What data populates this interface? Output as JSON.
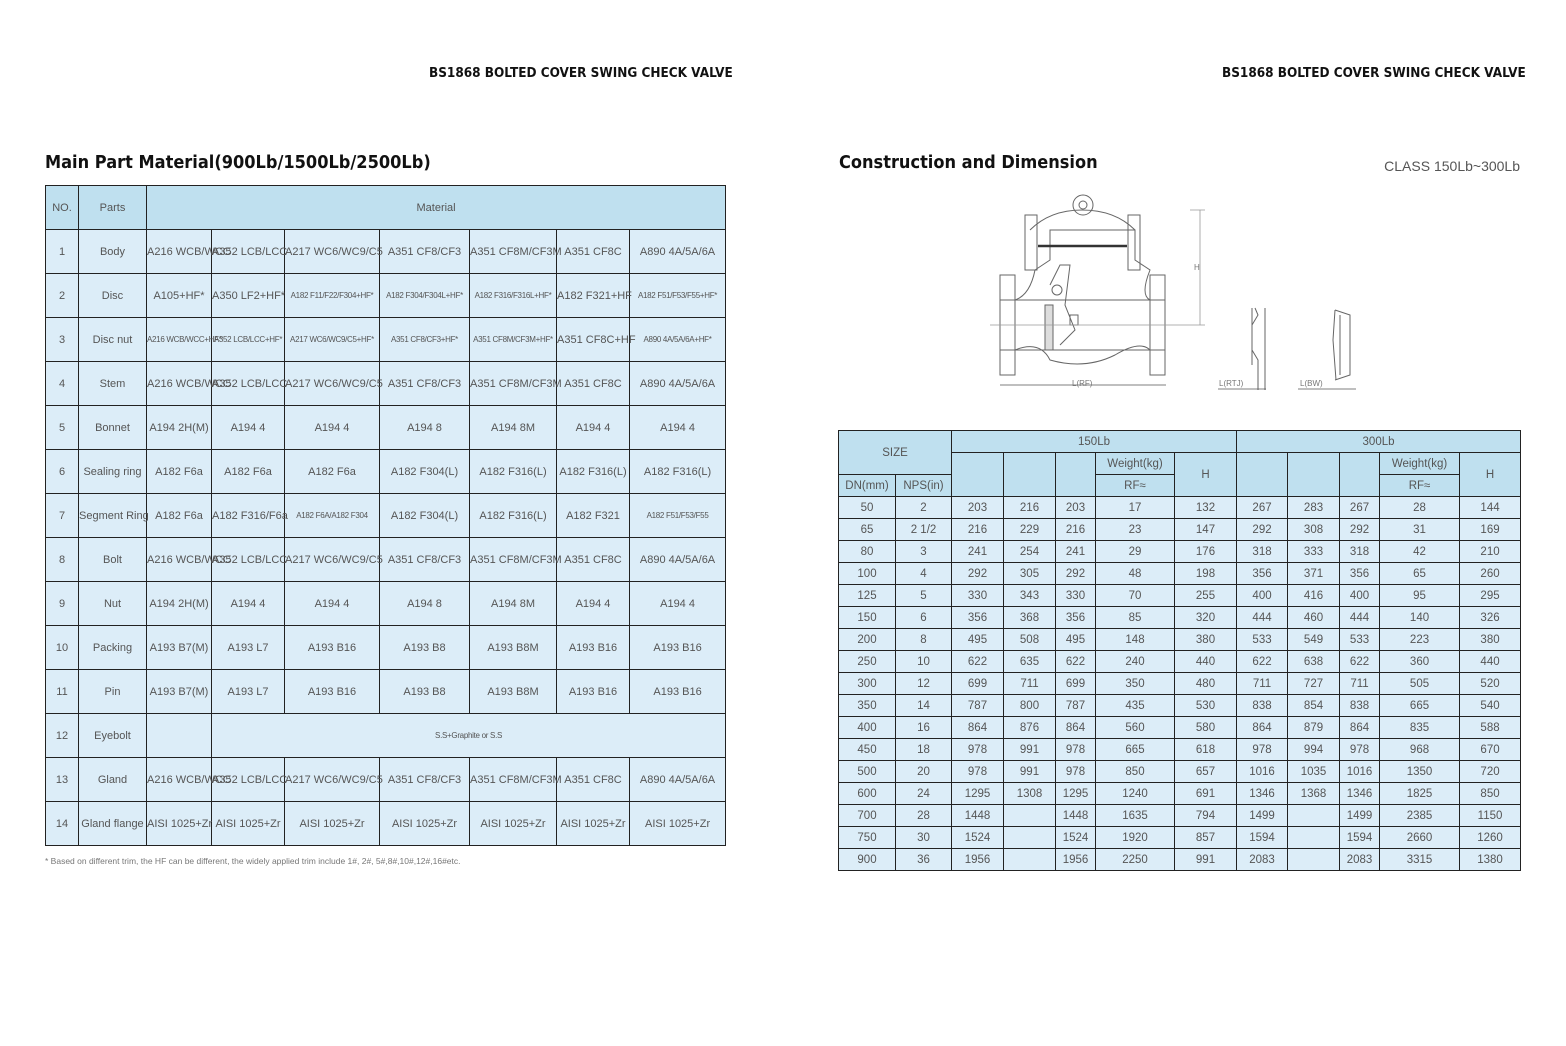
{
  "left_page": {
    "running_header": "BS1868 BOLTED COVER SWING CHECK VALVE",
    "section_title": "Main Part Material(900Lb/1500Lb/2500Lb)",
    "table": {
      "headers": {
        "no": "NO.",
        "parts": "Parts",
        "material": "Material"
      },
      "rows": [
        {
          "no": "1",
          "part": "Body",
          "materials": [
            "A216 WCB/WCC",
            "A352 LCB/LCC",
            "A217 WC6/WC9/C5",
            "A351 CF8/CF3",
            "A351 CF8M/CF3M",
            "A351 CF8C",
            "A890 4A/5A/6A"
          ]
        },
        {
          "no": "2",
          "part": "Disc",
          "materials": [
            "A105+HF*",
            "A350 LF2+HF*",
            "A182 F11/F22/F304+HF*",
            "A182 F304/F304L+HF*",
            "A182 F316/F316L+HF*",
            "A182 F321+HF",
            "A182 F51/F53/F55+HF*"
          ]
        },
        {
          "no": "3",
          "part": "Disc nut",
          "materials": [
            "A216 WCB/WCC+HF*",
            "A352 LCB/LCC+HF*",
            "A217 WC6/WC9/C5+HF*",
            "A351 CF8/CF3+HF*",
            "A351 CF8M/CF3M+HF*",
            "A351 CF8C+HF",
            "A890 4A/5A/6A+HF*"
          ]
        },
        {
          "no": "4",
          "part": "Stem",
          "materials": [
            "A216 WCB/WCC",
            "A352 LCB/LCC",
            "A217 WC6/WC9/C5",
            "A351 CF8/CF3",
            "A351 CF8M/CF3M",
            "A351 CF8C",
            "A890 4A/5A/6A"
          ]
        },
        {
          "no": "5",
          "part": "Bonnet",
          "materials": [
            "A194 2H(M)",
            "A194 4",
            "A194 4",
            "A194 8",
            "A194 8M",
            "A194 4",
            "A194 4"
          ]
        },
        {
          "no": "6",
          "part": "Sealing ring",
          "materials": [
            "A182 F6a",
            "A182 F6a",
            "A182 F6a",
            "A182 F304(L)",
            "A182 F316(L)",
            "A182 F316(L)",
            "A182 F316(L)"
          ]
        },
        {
          "no": "7",
          "part": "Segment Ring",
          "materials": [
            "A182 F6a",
            "A182 F316/F6a",
            "A182 F6A/A182 F304",
            "A182 F304(L)",
            "A182 F316(L)",
            "A182 F321",
            "A182 F51/F53/F55"
          ]
        },
        {
          "no": "8",
          "part": "Bolt",
          "materials": [
            "A216 WCB/WCC",
            "A352 LCB/LCC",
            "A217 WC6/WC9/C5",
            "A351 CF8/CF3",
            "A351 CF8M/CF3M",
            "A351 CF8C",
            "A890 4A/5A/6A"
          ]
        },
        {
          "no": "9",
          "part": "Nut",
          "materials": [
            "A194 2H(M)",
            "A194 4",
            "A194 4",
            "A194 8",
            "A194 8M",
            "A194 4",
            "A194 4"
          ]
        },
        {
          "no": "10",
          "part": "Packing",
          "materials": [
            "A193 B7(M)",
            "A193 L7",
            "A193 B16",
            "A193 B8",
            "A193 B8M",
            "A193 B16",
            "A193 B16"
          ]
        },
        {
          "no": "11",
          "part": "Pin",
          "materials": [
            "A193 B7(M)",
            "A193 L7",
            "A193 B16",
            "A193 B8",
            "A193 B8M",
            "A193 B16",
            "A193 B16"
          ]
        },
        {
          "no": "12",
          "part": "Eyebolt",
          "materials": [
            "",
            "S.S+Graphite or S.S"
          ]
        },
        {
          "no": "13",
          "part": "Gland",
          "materials": [
            "A216 WCB/WCC",
            "A352 LCB/LCC",
            "A217 WC6/WC9/C5",
            "A351 CF8/CF3",
            "A351 CF8M/CF3M",
            "A351 CF8C",
            "A890 4A/5A/6A"
          ]
        },
        {
          "no": "14",
          "part": "Gland flange",
          "materials": [
            "AISI 1025+Zr",
            "AISI 1025+Zr",
            "AISI 1025+Zr",
            "AISI 1025+Zr",
            "AISI 1025+Zr",
            "AISI 1025+Zr",
            "AISI 1025+Zr"
          ]
        }
      ]
    },
    "footnote": "* Based on different trim, the HF can be different, the widely applied trim include 1#, 2#, 5#,8#,10#,12#,16#etc."
  },
  "right_page": {
    "running_header": "BS1868 BOLTED COVER SWING CHECK VALVE",
    "section_title": "Construction and Dimension",
    "class_label": "CLASS 150Lb~300Lb",
    "drawing_labels": {
      "h": "H",
      "l_rf": "L(RF)",
      "l_rtj": "L(RTJ)",
      "l_bw": "L(BW)"
    },
    "table": {
      "size": "SIZE",
      "dn": "DN(mm)",
      "nps": "NPS(in)",
      "class1": "150Lb",
      "class2": "300Lb",
      "weight": "Weight(kg)",
      "rf": "RF≈",
      "h": "H",
      "rows": [
        [
          "50",
          "2",
          "203",
          "216",
          "203",
          "17",
          "132",
          "267",
          "283",
          "267",
          "28",
          "144"
        ],
        [
          "65",
          "2 1/2",
          "216",
          "229",
          "216",
          "23",
          "147",
          "292",
          "308",
          "292",
          "31",
          "169"
        ],
        [
          "80",
          "3",
          "241",
          "254",
          "241",
          "29",
          "176",
          "318",
          "333",
          "318",
          "42",
          "210"
        ],
        [
          "100",
          "4",
          "292",
          "305",
          "292",
          "48",
          "198",
          "356",
          "371",
          "356",
          "65",
          "260"
        ],
        [
          "125",
          "5",
          "330",
          "343",
          "330",
          "70",
          "255",
          "400",
          "416",
          "400",
          "95",
          "295"
        ],
        [
          "150",
          "6",
          "356",
          "368",
          "356",
          "85",
          "320",
          "444",
          "460",
          "444",
          "140",
          "326"
        ],
        [
          "200",
          "8",
          "495",
          "508",
          "495",
          "148",
          "380",
          "533",
          "549",
          "533",
          "223",
          "380"
        ],
        [
          "250",
          "10",
          "622",
          "635",
          "622",
          "240",
          "440",
          "622",
          "638",
          "622",
          "360",
          "440"
        ],
        [
          "300",
          "12",
          "699",
          "711",
          "699",
          "350",
          "480",
          "711",
          "727",
          "711",
          "505",
          "520"
        ],
        [
          "350",
          "14",
          "787",
          "800",
          "787",
          "435",
          "530",
          "838",
          "854",
          "838",
          "665",
          "540"
        ],
        [
          "400",
          "16",
          "864",
          "876",
          "864",
          "560",
          "580",
          "864",
          "879",
          "864",
          "835",
          "588"
        ],
        [
          "450",
          "18",
          "978",
          "991",
          "978",
          "665",
          "618",
          "978",
          "994",
          "978",
          "968",
          "670"
        ],
        [
          "500",
          "20",
          "978",
          "991",
          "978",
          "850",
          "657",
          "1016",
          "1035",
          "1016",
          "1350",
          "720"
        ],
        [
          "600",
          "24",
          "1295",
          "1308",
          "1295",
          "1240",
          "691",
          "1346",
          "1368",
          "1346",
          "1825",
          "850"
        ],
        [
          "700",
          "28",
          "1448",
          "",
          "1448",
          "1635",
          "794",
          "1499",
          "",
          "1499",
          "2385",
          "1150"
        ],
        [
          "750",
          "30",
          "1524",
          "",
          "1524",
          "1920",
          "857",
          "1594",
          "",
          "1594",
          "2660",
          "1260"
        ],
        [
          "900",
          "36",
          "1956",
          "",
          "1956",
          "2250",
          "991",
          "2083",
          "",
          "2083",
          "3315",
          "1380"
        ]
      ]
    }
  }
}
